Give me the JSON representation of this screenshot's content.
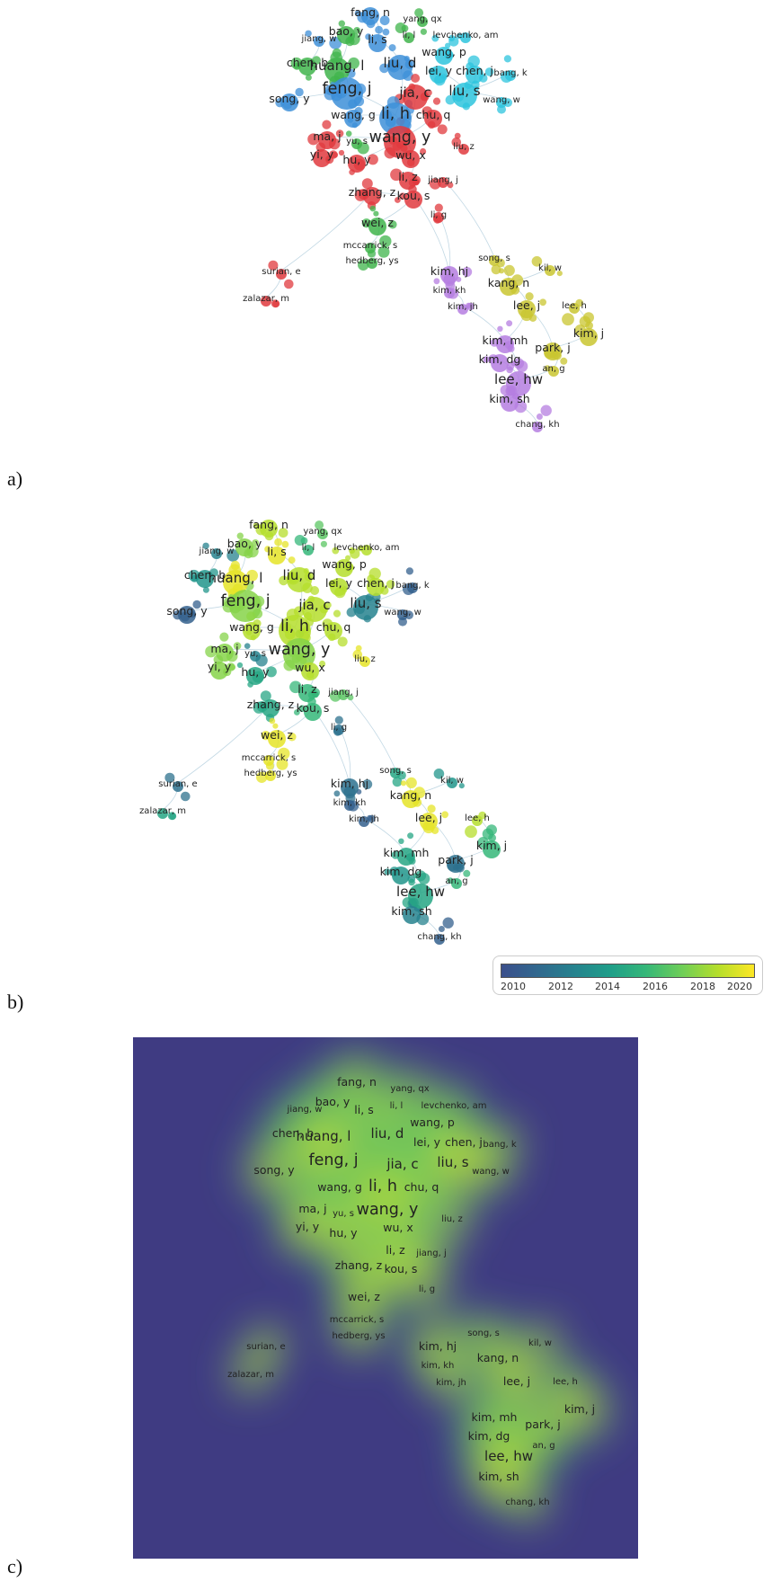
{
  "panels": [
    {
      "letter": "a)"
    },
    {
      "letter": "b)"
    },
    {
      "letter": "c)"
    }
  ],
  "legend": {
    "ticks": [
      "2010",
      "2012",
      "2014",
      "2016",
      "2018",
      "2020"
    ],
    "colors": [
      "#3b4f8c",
      "#26828e",
      "#1f9e89",
      "#35b779",
      "#b5de2b",
      "#fde725"
    ]
  },
  "cluster_colors": {
    "red": "#e03a3e",
    "blue": "#3d8fd8",
    "green": "#3fb44b",
    "cyan": "#2ec4dd",
    "purple": "#b57ee0",
    "olive": "#c9c630"
  },
  "nodes": [
    {
      "label": "fang, n",
      "cluster": "blue",
      "year": 2019,
      "size": 1
    },
    {
      "label": "yang, qx",
      "cluster": "green",
      "year": 2017,
      "size": 0
    },
    {
      "label": "jiang, w",
      "cluster": "blue",
      "year": 2013,
      "size": 0
    },
    {
      "label": "bao, y",
      "cluster": "green",
      "year": 2018,
      "size": 1
    },
    {
      "label": "li, s",
      "cluster": "blue",
      "year": 2020,
      "size": 1
    },
    {
      "label": "li, l",
      "cluster": "green",
      "year": 2016,
      "size": 0
    },
    {
      "label": "levchenko, am",
      "cluster": "cyan",
      "year": 2019,
      "size": 0
    },
    {
      "label": "chen, b",
      "cluster": "green",
      "year": 2014,
      "size": 1
    },
    {
      "label": "huang, l",
      "cluster": "green",
      "year": 2020,
      "size": 2
    },
    {
      "label": "liu, d",
      "cluster": "blue",
      "year": 2019,
      "size": 2
    },
    {
      "label": "wang, p",
      "cluster": "cyan",
      "year": 2019,
      "size": 1
    },
    {
      "label": "lei, y",
      "cluster": "cyan",
      "year": 2019,
      "size": 1
    },
    {
      "label": "chen, j",
      "cluster": "cyan",
      "year": 2019,
      "size": 1
    },
    {
      "label": "bang, k",
      "cluster": "cyan",
      "year": 2011,
      "size": 0
    },
    {
      "label": "song, y",
      "cluster": "blue",
      "year": 2011,
      "size": 1
    },
    {
      "label": "feng, j",
      "cluster": "blue",
      "year": 2018,
      "size": 3
    },
    {
      "label": "jia, c",
      "cluster": "red",
      "year": 2019,
      "size": 2
    },
    {
      "label": "liu, s",
      "cluster": "cyan",
      "year": 2013,
      "size": 2
    },
    {
      "label": "wang, w",
      "cluster": "cyan",
      "year": 2011,
      "size": 0
    },
    {
      "label": "wang, g",
      "cluster": "blue",
      "year": 2019,
      "size": 1
    },
    {
      "label": "li, h",
      "cluster": "blue",
      "year": 2019,
      "size": 3
    },
    {
      "label": "chu, q",
      "cluster": "red",
      "year": 2019,
      "size": 1
    },
    {
      "label": "ma, j",
      "cluster": "red",
      "year": 2018,
      "size": 1
    },
    {
      "label": "yu, s",
      "cluster": "green",
      "year": 2013,
      "size": 0
    },
    {
      "label": "wang, y",
      "cluster": "red",
      "year": 2018,
      "size": 3
    },
    {
      "label": "liu, z",
      "cluster": "red",
      "year": 2020,
      "size": 0
    },
    {
      "label": "yi, y",
      "cluster": "red",
      "year": 2018,
      "size": 1
    },
    {
      "label": "hu, y",
      "cluster": "red",
      "year": 2015,
      "size": 1
    },
    {
      "label": "wu, x",
      "cluster": "red",
      "year": 2019,
      "size": 1
    },
    {
      "label": "li, z",
      "cluster": "red",
      "year": 2016,
      "size": 1
    },
    {
      "label": "jiang, j",
      "cluster": "red",
      "year": 2017,
      "size": 0
    },
    {
      "label": "zhang, z",
      "cluster": "red",
      "year": 2015,
      "size": 1
    },
    {
      "label": "kou, s",
      "cluster": "red",
      "year": 2016,
      "size": 1
    },
    {
      "label": "li, g",
      "cluster": "red",
      "year": 2012,
      "size": 0
    },
    {
      "label": "wei, z",
      "cluster": "green",
      "year": 2020,
      "size": 1
    },
    {
      "label": "mccarrick, s",
      "cluster": "green",
      "year": 2020,
      "size": 0
    },
    {
      "label": "hedberg, ys",
      "cluster": "green",
      "year": 2020,
      "size": 0
    },
    {
      "label": "surian, e",
      "cluster": "red",
      "year": 2012,
      "size": 0
    },
    {
      "label": "zalazar, m",
      "cluster": "red",
      "year": 2015,
      "size": 0
    },
    {
      "label": "kim, hj",
      "cluster": "purple",
      "year": 2012,
      "size": 1
    },
    {
      "label": "kim, kh",
      "cluster": "purple",
      "year": 2011,
      "size": 0
    },
    {
      "label": "kim, jh",
      "cluster": "purple",
      "year": 2011,
      "size": 0
    },
    {
      "label": "song, s",
      "cluster": "olive",
      "year": 2015,
      "size": 0
    },
    {
      "label": "kil, w",
      "cluster": "olive",
      "year": 2014,
      "size": 0
    },
    {
      "label": "kang, n",
      "cluster": "olive",
      "year": 2020,
      "size": 1
    },
    {
      "label": "lee, j",
      "cluster": "olive",
      "year": 2020,
      "size": 1
    },
    {
      "label": "lee, h",
      "cluster": "olive",
      "year": 2019,
      "size": 0
    },
    {
      "label": "kim, j",
      "cluster": "olive",
      "year": 2016,
      "size": 1
    },
    {
      "label": "kim, mh",
      "cluster": "purple",
      "year": 2015,
      "size": 1
    },
    {
      "label": "park, j",
      "cluster": "olive",
      "year": 2012,
      "size": 1
    },
    {
      "label": "kim, dg",
      "cluster": "purple",
      "year": 2014,
      "size": 1
    },
    {
      "label": "an, g",
      "cluster": "olive",
      "year": 2016,
      "size": 0
    },
    {
      "label": "lee, hw",
      "cluster": "purple",
      "year": 2015,
      "size": 2
    },
    {
      "label": "kim, sh",
      "cluster": "purple",
      "year": 2013,
      "size": 1
    },
    {
      "label": "chang, kh",
      "cluster": "purple",
      "year": 2011,
      "size": 0
    }
  ],
  "links": [
    [
      "fang, n",
      "li, s"
    ],
    [
      "bao, y",
      "huang, l"
    ],
    [
      "li, s",
      "liu, d"
    ],
    [
      "huang, l",
      "feng, j"
    ],
    [
      "liu, d",
      "li, h"
    ],
    [
      "feng, j",
      "li, h"
    ],
    [
      "li, h",
      "wang, y"
    ],
    [
      "jia, c",
      "wang, y"
    ],
    [
      "wang, g",
      "li, h"
    ],
    [
      "chu, q",
      "wang, y"
    ],
    [
      "wang, y",
      "wu, x"
    ],
    [
      "wang, y",
      "hu, y"
    ],
    [
      "ma, j",
      "wang, y"
    ],
    [
      "wu, x",
      "li, z"
    ],
    [
      "li, z",
      "kou, s"
    ],
    [
      "zhang, z",
      "kou, s"
    ],
    [
      "kou, s",
      "kim, hj"
    ],
    [
      "li, g",
      "kim, hj"
    ],
    [
      "zhang, z",
      "surian, e"
    ],
    [
      "jiang, j",
      "song, s"
    ],
    [
      "kim, hj",
      "kim, kh"
    ],
    [
      "kim, kh",
      "kim, jh"
    ],
    [
      "kim, jh",
      "kim, mh"
    ],
    [
      "kim, mh",
      "lee, hw"
    ],
    [
      "kim, dg",
      "lee, hw"
    ],
    [
      "lee, hw",
      "kim, sh"
    ],
    [
      "kim, sh",
      "chang, kh"
    ],
    [
      "kang, n",
      "lee, j"
    ],
    [
      "lee, j",
      "park, j"
    ],
    [
      "lee, h",
      "kim, j"
    ],
    [
      "park, j",
      "an, g"
    ],
    [
      "an, g",
      "lee, hw"
    ],
    [
      "kil, w",
      "kang, n"
    ],
    [
      "song, s",
      "kang, n"
    ],
    [
      "liu, s",
      "lei, y"
    ],
    [
      "chen, j",
      "liu, s"
    ],
    [
      "liu, s",
      "bang, k"
    ],
    [
      "liu, s",
      "wang, w"
    ],
    [
      "song, y",
      "feng, j"
    ],
    [
      "jiang, w",
      "chen, b"
    ],
    [
      "surian, e",
      "zalazar, m"
    ],
    [
      "wei, z",
      "mccarrick, s"
    ],
    [
      "mccarrick, s",
      "hedberg, ys"
    ],
    [
      "kou, s",
      "wei, z"
    ],
    [
      "lee, j",
      "kim, mh"
    ],
    [
      "kim, j",
      "park, j"
    ]
  ]
}
